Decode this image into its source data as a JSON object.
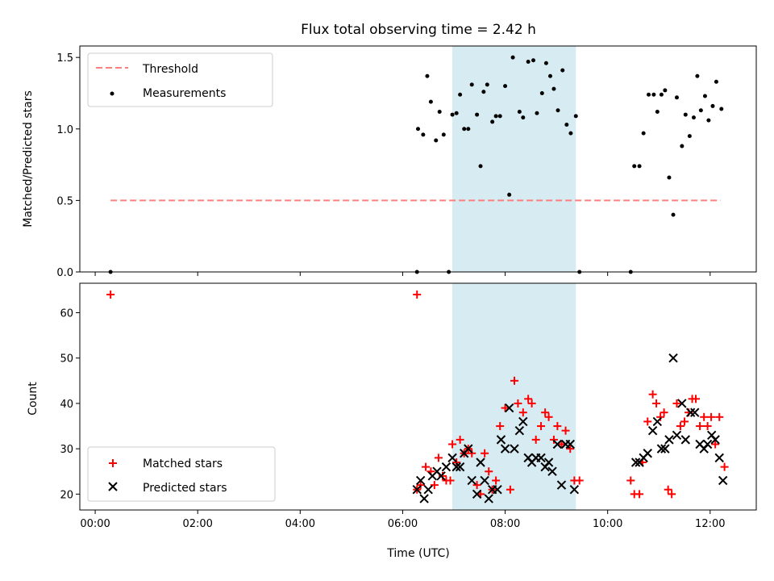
{
  "chart_data": {
    "type": "scatter",
    "title": "Flux total observing time = 2.42 h",
    "xlabel": "Time (UTC)",
    "x_unit": "hours",
    "xlim": [
      -0.3,
      12.9
    ],
    "x_ticks": [
      {
        "value": 0,
        "label": "00:00"
      },
      {
        "value": 2,
        "label": "02:00"
      },
      {
        "value": 4,
        "label": "04:00"
      },
      {
        "value": 6,
        "label": "06:00"
      },
      {
        "value": 8,
        "label": "08:00"
      },
      {
        "value": 10,
        "label": "10:00"
      },
      {
        "value": 12,
        "label": "12:00"
      }
    ],
    "highlight_span": {
      "x_start": 6.97,
      "x_end": 9.38,
      "color": "#add8e6"
    },
    "top": {
      "ylabel": "Matched/Predicted stars",
      "ylim": [
        0,
        1.58
      ],
      "y_ticks": [
        {
          "value": 0.0,
          "label": "0.0"
        },
        {
          "value": 0.5,
          "label": "0.5"
        },
        {
          "value": 1.0,
          "label": "1.0"
        },
        {
          "value": 1.5,
          "label": "1.5"
        }
      ],
      "legend": {
        "position": "top-left",
        "threshold_label": "Threshold",
        "measurements_label": "Measurements"
      },
      "threshold": {
        "value": 0.5,
        "x_start": 0.3,
        "x_end": 12.2,
        "color": "#ff7f7f"
      },
      "measurements": [
        [
          0.3,
          0.0
        ],
        [
          6.28,
          0.0
        ],
        [
          6.9,
          0.0
        ],
        [
          9.45,
          0.0
        ],
        [
          10.45,
          0.0
        ],
        [
          6.3,
          1.0
        ],
        [
          6.4,
          0.96
        ],
        [
          6.48,
          1.37
        ],
        [
          6.55,
          1.19
        ],
        [
          6.65,
          0.92
        ],
        [
          6.72,
          1.12
        ],
        [
          6.8,
          0.96
        ],
        [
          6.97,
          1.1
        ],
        [
          7.05,
          1.11
        ],
        [
          7.12,
          1.24
        ],
        [
          7.2,
          1.0
        ],
        [
          7.28,
          1.0
        ],
        [
          7.35,
          1.31
        ],
        [
          7.45,
          1.1
        ],
        [
          7.52,
          0.74
        ],
        [
          7.58,
          1.26
        ],
        [
          7.65,
          1.31
        ],
        [
          7.75,
          1.05
        ],
        [
          7.82,
          1.09
        ],
        [
          7.9,
          1.09
        ],
        [
          8.0,
          1.3
        ],
        [
          8.08,
          0.54
        ],
        [
          8.15,
          1.5
        ],
        [
          8.28,
          1.12
        ],
        [
          8.35,
          1.08
        ],
        [
          8.45,
          1.47
        ],
        [
          8.55,
          1.48
        ],
        [
          8.62,
          1.11
        ],
        [
          8.72,
          1.25
        ],
        [
          8.8,
          1.46
        ],
        [
          8.88,
          1.37
        ],
        [
          8.95,
          1.28
        ],
        [
          9.03,
          1.13
        ],
        [
          9.12,
          1.41
        ],
        [
          9.2,
          1.03
        ],
        [
          9.28,
          0.97
        ],
        [
          9.38,
          1.09
        ],
        [
          10.52,
          0.74
        ],
        [
          10.62,
          0.74
        ],
        [
          10.7,
          0.97
        ],
        [
          10.8,
          1.24
        ],
        [
          10.9,
          1.24
        ],
        [
          10.97,
          1.12
        ],
        [
          11.05,
          1.24
        ],
        [
          11.12,
          1.27
        ],
        [
          11.2,
          0.66
        ],
        [
          11.28,
          0.4
        ],
        [
          11.35,
          1.22
        ],
        [
          11.45,
          0.88
        ],
        [
          11.52,
          1.1
        ],
        [
          11.6,
          0.95
        ],
        [
          11.68,
          1.08
        ],
        [
          11.75,
          1.37
        ],
        [
          11.82,
          1.13
        ],
        [
          11.9,
          1.23
        ],
        [
          11.97,
          1.06
        ],
        [
          12.05,
          1.16
        ],
        [
          12.12,
          1.33
        ],
        [
          12.22,
          1.14
        ]
      ]
    },
    "bottom": {
      "ylabel": "Count",
      "ylim": [
        16.5,
        66.5
      ],
      "y_ticks": [
        {
          "value": 20,
          "label": "20"
        },
        {
          "value": 30,
          "label": "30"
        },
        {
          "value": 40,
          "label": "40"
        },
        {
          "value": 50,
          "label": "50"
        },
        {
          "value": 60,
          "label": "60"
        }
      ],
      "legend": {
        "position": "bottom-left",
        "matched_label": "Matched stars",
        "predicted_label": "Predicted stars"
      },
      "matched_color": "#ff0000",
      "predicted_color": "#000000",
      "matched": [
        [
          0.3,
          64
        ],
        [
          6.28,
          64
        ],
        [
          6.28,
          21
        ],
        [
          6.35,
          22
        ],
        [
          6.45,
          26
        ],
        [
          6.55,
          25
        ],
        [
          6.62,
          22
        ],
        [
          6.7,
          28
        ],
        [
          6.78,
          24
        ],
        [
          6.85,
          23
        ],
        [
          6.93,
          23
        ],
        [
          6.97,
          31
        ],
        [
          7.05,
          27
        ],
        [
          7.12,
          32
        ],
        [
          7.2,
          29
        ],
        [
          7.28,
          30
        ],
        [
          7.35,
          29
        ],
        [
          7.45,
          22
        ],
        [
          7.52,
          20
        ],
        [
          7.6,
          29
        ],
        [
          7.68,
          25
        ],
        [
          7.75,
          21
        ],
        [
          7.82,
          23
        ],
        [
          7.9,
          35
        ],
        [
          8.0,
          39
        ],
        [
          8.1,
          21
        ],
        [
          8.18,
          45
        ],
        [
          8.25,
          40
        ],
        [
          8.35,
          38
        ],
        [
          8.45,
          41
        ],
        [
          8.52,
          40
        ],
        [
          8.6,
          32
        ],
        [
          8.7,
          35
        ],
        [
          8.78,
          38
        ],
        [
          8.85,
          37
        ],
        [
          8.95,
          32
        ],
        [
          9.02,
          35
        ],
        [
          9.1,
          31
        ],
        [
          9.18,
          34
        ],
        [
          9.27,
          30
        ],
        [
          9.35,
          23
        ],
        [
          9.45,
          23
        ],
        [
          10.45,
          23
        ],
        [
          10.52,
          20
        ],
        [
          10.62,
          20
        ],
        [
          10.68,
          27
        ],
        [
          10.78,
          36
        ],
        [
          10.88,
          42
        ],
        [
          10.95,
          40
        ],
        [
          11.03,
          37
        ],
        [
          11.1,
          38
        ],
        [
          11.18,
          21
        ],
        [
          11.25,
          20
        ],
        [
          11.35,
          40
        ],
        [
          11.42,
          35
        ],
        [
          11.5,
          36
        ],
        [
          11.58,
          38
        ],
        [
          11.65,
          41
        ],
        [
          11.72,
          41
        ],
        [
          11.8,
          35
        ],
        [
          11.88,
          37
        ],
        [
          11.95,
          35
        ],
        [
          12.02,
          37
        ],
        [
          12.1,
          31
        ],
        [
          12.18,
          37
        ],
        [
          12.28,
          26
        ]
      ],
      "predicted": [
        [
          6.28,
          21
        ],
        [
          6.35,
          23
        ],
        [
          6.42,
          19
        ],
        [
          6.5,
          21
        ],
        [
          6.58,
          24
        ],
        [
          6.67,
          25
        ],
        [
          6.75,
          24
        ],
        [
          6.85,
          26
        ],
        [
          6.97,
          28
        ],
        [
          7.05,
          26
        ],
        [
          7.12,
          26
        ],
        [
          7.2,
          29
        ],
        [
          7.28,
          30
        ],
        [
          7.35,
          23
        ],
        [
          7.45,
          20
        ],
        [
          7.52,
          27
        ],
        [
          7.6,
          23
        ],
        [
          7.68,
          19
        ],
        [
          7.75,
          21
        ],
        [
          7.85,
          21
        ],
        [
          7.92,
          32
        ],
        [
          8.0,
          30
        ],
        [
          8.08,
          39
        ],
        [
          8.18,
          30
        ],
        [
          8.28,
          34
        ],
        [
          8.35,
          36
        ],
        [
          8.45,
          28
        ],
        [
          8.52,
          27
        ],
        [
          8.6,
          28
        ],
        [
          8.7,
          28
        ],
        [
          8.78,
          26
        ],
        [
          8.85,
          27
        ],
        [
          8.92,
          25
        ],
        [
          9.02,
          31
        ],
        [
          9.1,
          22
        ],
        [
          9.18,
          31
        ],
        [
          9.27,
          31
        ],
        [
          9.35,
          21
        ],
        [
          10.55,
          27
        ],
        [
          10.62,
          27
        ],
        [
          10.7,
          28
        ],
        [
          10.78,
          29
        ],
        [
          10.88,
          34
        ],
        [
          10.97,
          36
        ],
        [
          11.05,
          30
        ],
        [
          11.12,
          30
        ],
        [
          11.2,
          32
        ],
        [
          11.28,
          50
        ],
        [
          11.35,
          33
        ],
        [
          11.45,
          40
        ],
        [
          11.52,
          32
        ],
        [
          11.62,
          38
        ],
        [
          11.7,
          38
        ],
        [
          11.8,
          31
        ],
        [
          11.88,
          30
        ],
        [
          11.95,
          31
        ],
        [
          12.03,
          33
        ],
        [
          12.1,
          32
        ],
        [
          12.18,
          28
        ],
        [
          12.25,
          23
        ]
      ]
    }
  }
}
